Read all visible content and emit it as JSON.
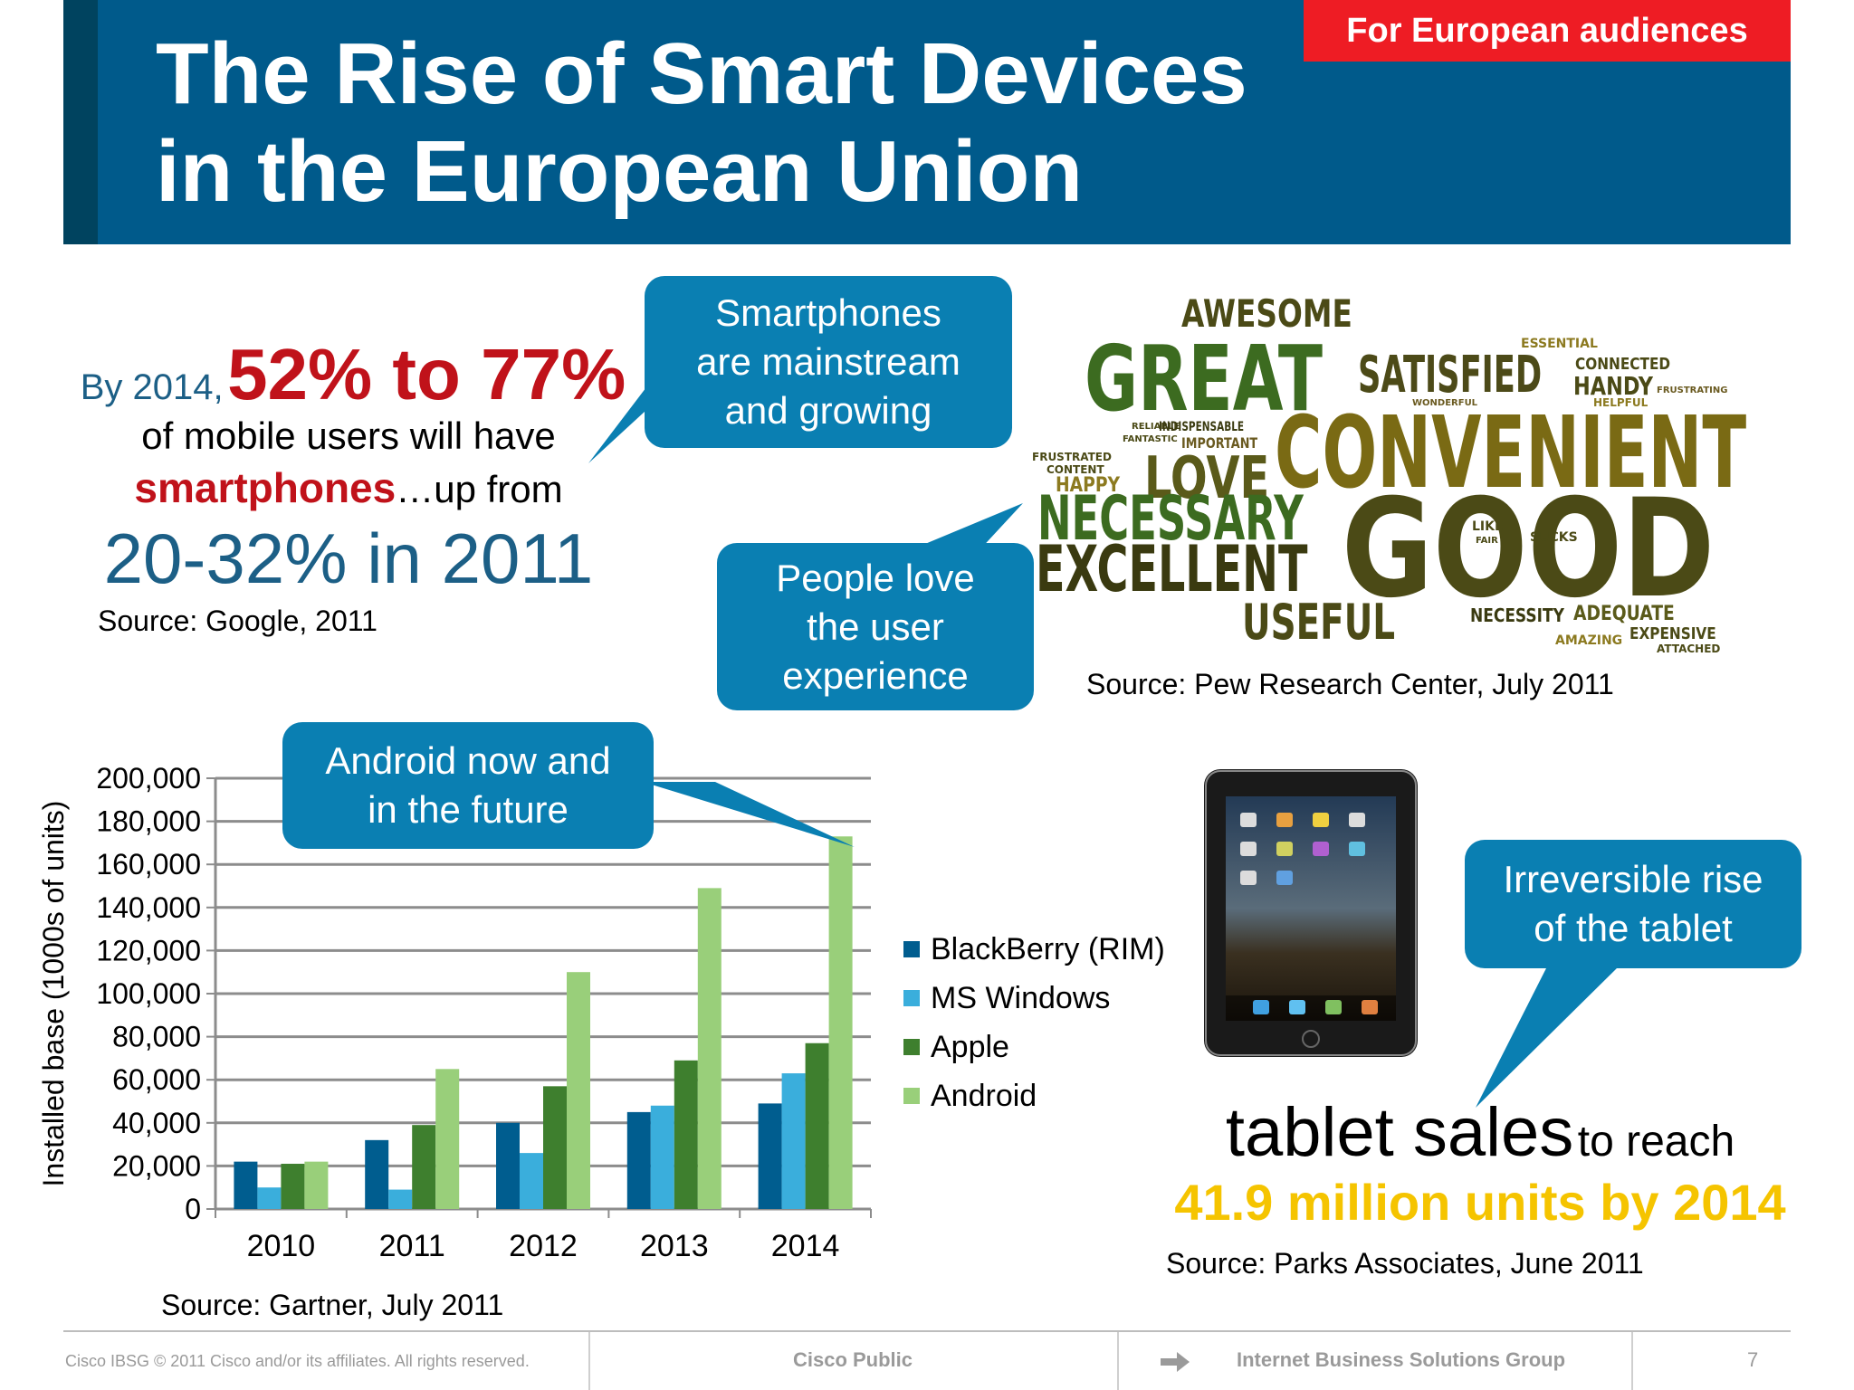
{
  "header": {
    "title_line1": "The Rise of Smart Devices",
    "title_line2": "in the European Union",
    "audience_tag": "For European audiences"
  },
  "stats": {
    "by": "By 2014,",
    "range": "52% to 77%",
    "line2": "of mobile users will have",
    "smartphones": "smartphones",
    "up_from": "…up from",
    "past": "20-32% in 2011",
    "source": "Source: Google, 2011"
  },
  "callouts": {
    "smartphones": [
      "Smartphones",
      "are mainstream",
      "and growing"
    ],
    "ux": [
      "People love",
      "the user",
      "experience"
    ],
    "android": [
      "Android now and",
      "in the future"
    ],
    "tablet": [
      "Irreversible rise",
      "of the tablet"
    ]
  },
  "wordcloud": {
    "words": [
      "AWESOME",
      "GREAT",
      "SATISFIED",
      "ESSENTIAL",
      "CONNECTED",
      "HANDY",
      "FRUSTRATING",
      "WONDERFUL",
      "HELPFUL",
      "RELIABLE",
      "FANTASTIC",
      "INDISPENSABLE",
      "IMPORTANT",
      "CONVENIENT",
      "FRUSTRATED",
      "CONTENT",
      "HAPPY",
      "LOVE",
      "NECESSARY",
      "EXCELLENT",
      "GOOD",
      "LIKE",
      "FAIR",
      "SUCKS",
      "USEFUL",
      "NECESSITY",
      "ADEQUATE",
      "AMAZING",
      "EXPENSIVE",
      "ATTACHED"
    ],
    "source": "Source: Pew Research Center, July 2011"
  },
  "chart_data": {
    "type": "bar",
    "categories": [
      "2010",
      "2011",
      "2012",
      "2013",
      "2014"
    ],
    "ylabel": "Installed base (1000s of units)",
    "ylim": [
      0,
      200000
    ],
    "yticks": [
      "0",
      "20,000",
      "40,000",
      "60,000",
      "80,000",
      "100,000",
      "120,000",
      "140,000",
      "160,000",
      "180,000",
      "200,000"
    ],
    "grid": true,
    "legend_position": "right",
    "series": [
      {
        "name": "BlackBerry (RIM)",
        "color": "#005d8f",
        "values": [
          22000,
          32000,
          40000,
          45000,
          49000
        ]
      },
      {
        "name": "MS Windows",
        "color": "#3aaedc",
        "values": [
          10000,
          9000,
          26000,
          48000,
          63000
        ]
      },
      {
        "name": "Apple",
        "color": "#3e7f2e",
        "values": [
          21000,
          39000,
          57000,
          69000,
          77000
        ]
      },
      {
        "name": "Android",
        "color": "#99cf7a",
        "values": [
          22000,
          65000,
          110000,
          149000,
          173000
        ]
      }
    ],
    "source": "Source: Gartner, July 2011"
  },
  "tablet": {
    "sales": "tablet sales",
    "to_reach": "to reach",
    "units": "41.9 million units by 2014",
    "source": "Source: Parks Associates, June 2011"
  },
  "footer": {
    "copyright": "Cisco IBSG © 2011 Cisco and/or its affiliates. All rights reserved.",
    "classification": "Cisco Public",
    "group": "Internet Business Solutions Group",
    "page": "7"
  },
  "colors": {
    "header_blue": "#005a8b",
    "callout_blue": "#0a7fb2",
    "red": "#c0121a",
    "teal_text": "#1c5f86",
    "gold": "#f5c400",
    "tag_red": "#ee1c24"
  }
}
